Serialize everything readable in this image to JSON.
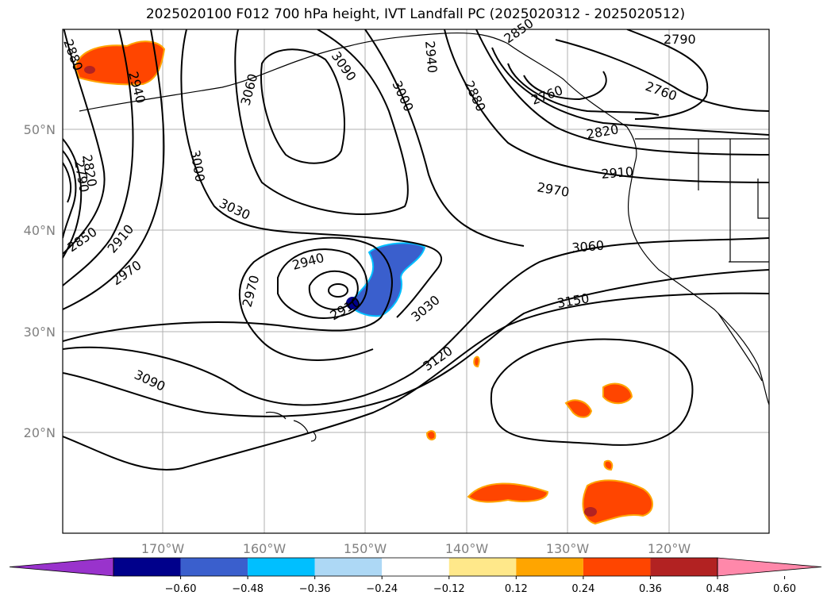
{
  "title": "2025020100 F012 700 hPa height, IVT Landfall PC (2025020312 - 2025020512)",
  "lat_labels": [
    "50°N",
    "40°N",
    "30°N",
    "20°N"
  ],
  "lon_labels": [
    "170°W",
    "160°W",
    "150°W",
    "140°W",
    "130°W",
    "120°W"
  ],
  "contour_labels": [
    "2880",
    "2940",
    "3060",
    "3090",
    "2940",
    "3000",
    "2880",
    "2850",
    "2790",
    "2760",
    "2760",
    "2820",
    "2910",
    "2970",
    "3000",
    "2820",
    "2790",
    "3030",
    "2850",
    "2910",
    "2970",
    "2970",
    "2940",
    "2910",
    "3030",
    "3060",
    "3150",
    "3120",
    "3090"
  ],
  "colorbar": {
    "ticks": [
      "−0.60",
      "−0.48",
      "−0.36",
      "−0.24",
      "−0.12",
      "0.12",
      "0.24",
      "0.36",
      "0.48",
      "0.60"
    ],
    "colors": [
      "#9933cc",
      "#00008b",
      "#3a5fcd",
      "#00bfff",
      "#add8f5",
      "#ffffff",
      "#ffe88a",
      "#ffa500",
      "#ff4500",
      "#b22222",
      "#ff88aa"
    ]
  }
}
